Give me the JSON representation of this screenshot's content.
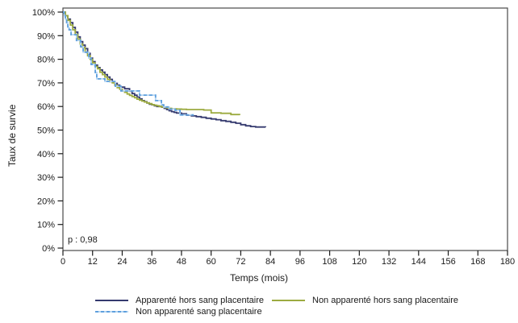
{
  "chart_data": {
    "type": "line",
    "subtype": "kaplan-meier-step",
    "title": "",
    "xlabel": "Temps (mois)",
    "ylabel": "Taux de survie",
    "annotation": "p : 0,98",
    "xlim": [
      0,
      180
    ],
    "ylim": [
      0,
      100
    ],
    "x_ticks": [
      0,
      12,
      24,
      36,
      48,
      60,
      72,
      84,
      96,
      108,
      120,
      132,
      144,
      156,
      168,
      180
    ],
    "y_ticks_percent": [
      0,
      10,
      20,
      30,
      40,
      50,
      60,
      70,
      80,
      90,
      100
    ],
    "y_tick_suffix": "%",
    "grid": false,
    "legend_position": "bottom",
    "axis_color": "#1a1a1a",
    "frame_color": "#4a4a4a",
    "series": [
      {
        "name": "Apparenté hors sang placentaire",
        "color": "#353a6f",
        "dashed": false,
        "points": [
          [
            0,
            100
          ],
          [
            1,
            98.5
          ],
          [
            2,
            97
          ],
          [
            3,
            95.5
          ],
          [
            4,
            93.5
          ],
          [
            5,
            91.5
          ],
          [
            6,
            89.5
          ],
          [
            7,
            87.5
          ],
          [
            8,
            86
          ],
          [
            9,
            84.5
          ],
          [
            10,
            82.5
          ],
          [
            11,
            80.5
          ],
          [
            12,
            79
          ],
          [
            13,
            77.5
          ],
          [
            14,
            76.5
          ],
          [
            15,
            75.5
          ],
          [
            16,
            74.5
          ],
          [
            17,
            73.5
          ],
          [
            18,
            72.5
          ],
          [
            19,
            71.5
          ],
          [
            20,
            70.5
          ],
          [
            21,
            69.8
          ],
          [
            22,
            69
          ],
          [
            23,
            68.2
          ],
          [
            25,
            67.5
          ],
          [
            27,
            66.5
          ],
          [
            28,
            65.5
          ],
          [
            29,
            64.8
          ],
          [
            30,
            64
          ],
          [
            31,
            63.2
          ],
          [
            32,
            62.5
          ],
          [
            33,
            62
          ],
          [
            34,
            61.5
          ],
          [
            35,
            61
          ],
          [
            36,
            60.7
          ],
          [
            37,
            60.3
          ],
          [
            38,
            60
          ],
          [
            40,
            59.7
          ],
          [
            41,
            59.2
          ],
          [
            42,
            58.7
          ],
          [
            43,
            58.2
          ],
          [
            44,
            57.8
          ],
          [
            45,
            57.5
          ],
          [
            46,
            57.2
          ],
          [
            48,
            56.9
          ],
          [
            50,
            56.3
          ],
          [
            52,
            56
          ],
          [
            54,
            55.7
          ],
          [
            56,
            55.4
          ],
          [
            58,
            55
          ],
          [
            60,
            54.7
          ],
          [
            62,
            54.4
          ],
          [
            64,
            54
          ],
          [
            66,
            53.7
          ],
          [
            68,
            53.3
          ],
          [
            70,
            52.9
          ],
          [
            72,
            52.3
          ],
          [
            74,
            51.8
          ],
          [
            76,
            51.5
          ],
          [
            78,
            51.3
          ],
          [
            82,
            51.2
          ]
        ]
      },
      {
        "name": "Non apparenté hors sang placentaire",
        "color": "#9cab40",
        "dashed": false,
        "points": [
          [
            0,
            100
          ],
          [
            1,
            98.5
          ],
          [
            2,
            96.5
          ],
          [
            3,
            94.5
          ],
          [
            4,
            92.5
          ],
          [
            5,
            90.5
          ],
          [
            6,
            88.5
          ],
          [
            7,
            86.5
          ],
          [
            8,
            85
          ],
          [
            9,
            83
          ],
          [
            10,
            81.5
          ],
          [
            11,
            80
          ],
          [
            12,
            78.5
          ],
          [
            13,
            77
          ],
          [
            14,
            76
          ],
          [
            15,
            74.5
          ],
          [
            16,
            73.5
          ],
          [
            17,
            72.5
          ],
          [
            18,
            71.5
          ],
          [
            19,
            70.5
          ],
          [
            20,
            70
          ],
          [
            21,
            69
          ],
          [
            22,
            68
          ],
          [
            23,
            67.3
          ],
          [
            24,
            66.6
          ],
          [
            25,
            66
          ],
          [
            26,
            65.3
          ],
          [
            27,
            64.7
          ],
          [
            28,
            64.2
          ],
          [
            29,
            63.7
          ],
          [
            30,
            63.1
          ],
          [
            31,
            62.7
          ],
          [
            32,
            62.3
          ],
          [
            33,
            61.9
          ],
          [
            34,
            61.5
          ],
          [
            35,
            61.2
          ],
          [
            36,
            60.8
          ],
          [
            37,
            60.5
          ],
          [
            38,
            60.3
          ],
          [
            39,
            60
          ],
          [
            40,
            59.8
          ],
          [
            41,
            59.6
          ],
          [
            42,
            59.4
          ],
          [
            43,
            59.2
          ],
          [
            44,
            59
          ],
          [
            46,
            58.9
          ],
          [
            48,
            58.8
          ],
          [
            50,
            58.7
          ],
          [
            57,
            58.5
          ],
          [
            60,
            57.3
          ],
          [
            64,
            57.1
          ],
          [
            68,
            56.6
          ],
          [
            71.5,
            56.3
          ]
        ]
      },
      {
        "name": "Non apparenté sang placentaire",
        "color": "#5e9fdd",
        "dashed": true,
        "dash_base_color": "#b5d5f2",
        "points": [
          [
            0,
            100
          ],
          [
            0.5,
            98.5
          ],
          [
            1,
            97
          ],
          [
            1.5,
            95.5
          ],
          [
            2,
            93.5
          ],
          [
            2.5,
            92.5
          ],
          [
            3.3,
            90.4
          ],
          [
            5.5,
            88
          ],
          [
            7.2,
            85.3
          ],
          [
            8.2,
            83
          ],
          [
            10.5,
            80.5
          ],
          [
            11.4,
            77.8
          ],
          [
            13.1,
            74.4
          ],
          [
            13.7,
            71.7
          ],
          [
            17,
            70.6
          ],
          [
            21.2,
            68.6
          ],
          [
            23.5,
            66.6
          ],
          [
            31,
            64.8
          ],
          [
            37.5,
            62.5
          ],
          [
            39.9,
            60.7
          ],
          [
            40.8,
            59.8
          ],
          [
            43,
            58.9
          ],
          [
            45.4,
            58.4
          ],
          [
            47.4,
            56.4
          ],
          [
            53,
            56.4
          ]
        ]
      }
    ]
  }
}
